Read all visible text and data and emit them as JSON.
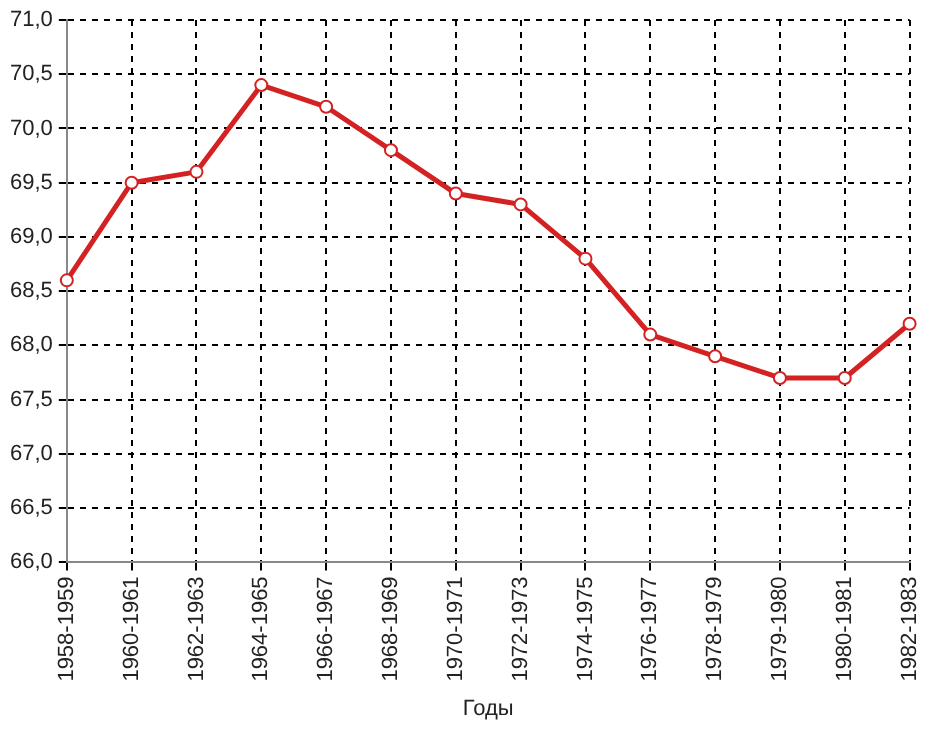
{
  "chart_data": {
    "type": "line",
    "xlabel": "Годы",
    "categories": [
      "1958-1959",
      "1960-1961",
      "1962-1963",
      "1964-1965",
      "1966-1967",
      "1968-1969",
      "1970-1971",
      "1972-1973",
      "1974-1975",
      "1976-1977",
      "1978-1979",
      "1979-1980",
      "1980-1981",
      "1982-1983"
    ],
    "series": [
      {
        "color": "#d42222",
        "values": [
          68.6,
          69.5,
          69.6,
          70.4,
          70.2,
          69.8,
          69.4,
          69.3,
          68.8,
          68.1,
          67.9,
          67.7,
          67.7,
          68.2
        ]
      }
    ],
    "ylim": [
      66,
      71
    ],
    "yticks": [
      {
        "value": 66,
        "label": "66,0"
      },
      {
        "value": 66.5,
        "label": "66,5"
      },
      {
        "value": 67,
        "label": "67,0"
      },
      {
        "value": 67.5,
        "label": "67,5"
      },
      {
        "value": 68,
        "label": "68,0"
      },
      {
        "value": 68.5,
        "label": "68,5"
      },
      {
        "value": 69,
        "label": "69,0"
      },
      {
        "value": 69.5,
        "label": "69,5"
      },
      {
        "value": 70,
        "label": "70,0"
      },
      {
        "value": 70.5,
        "label": "70,5"
      },
      {
        "value": 71,
        "label": "71,0"
      }
    ],
    "grid": true,
    "legend": false,
    "marker": "circle"
  }
}
